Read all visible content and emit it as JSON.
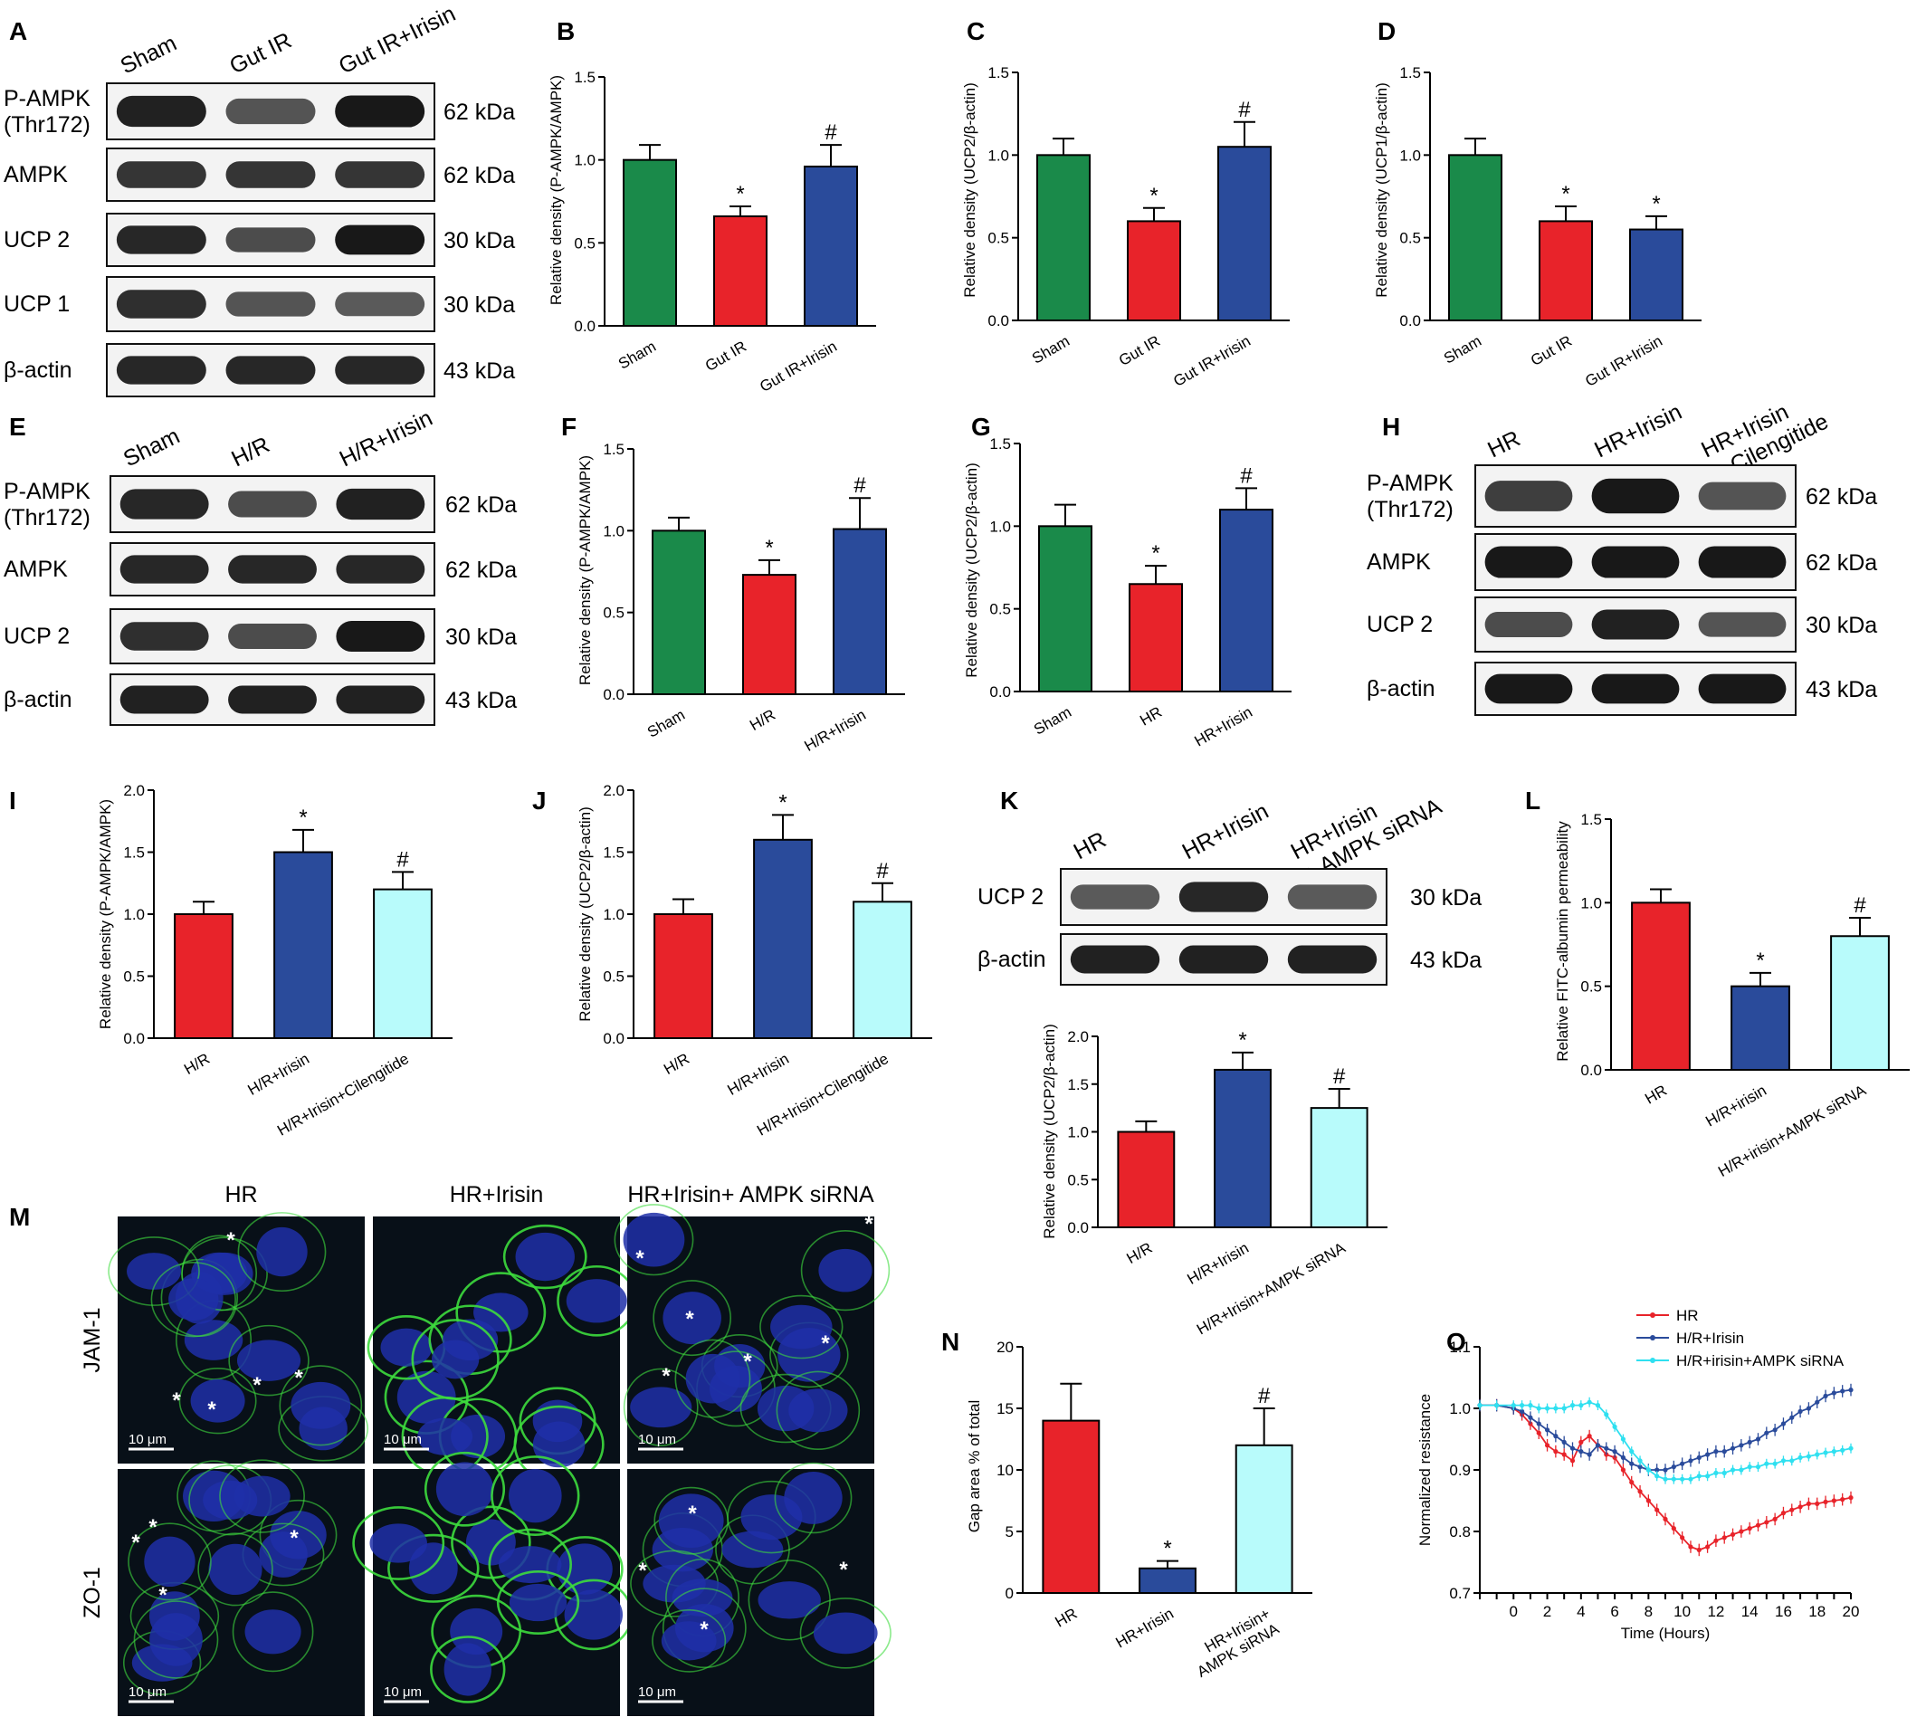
{
  "figure": {
    "panel_letters": [
      "A",
      "B",
      "C",
      "D",
      "E",
      "F",
      "G",
      "H",
      "I",
      "J",
      "K",
      "L",
      "M",
      "N",
      "O"
    ]
  },
  "colors": {
    "green": "#1a8a4a",
    "red": "#e8232a",
    "blue": "#2a4b9b",
    "cyan": "#b8fbfb",
    "blot_bg": "#f3f3f3",
    "band": "#111111",
    "micro_bg": "#081018",
    "micro_nuclei": "#1f2fa8",
    "micro_membrane": "#3ddc3d"
  },
  "blots": {
    "A": {
      "lanes": [
        "Sham",
        "Gut IR",
        "Gut IR+Irisin"
      ],
      "rows": [
        {
          "label": "P-AMPK\n(Thr172)",
          "kda": "62 kDa",
          "intensity": [
            0.9,
            0.55,
            0.95
          ]
        },
        {
          "label": "AMPK",
          "kda": "62 kDa",
          "intensity": [
            0.75,
            0.75,
            0.75
          ]
        },
        {
          "label": "UCP 2",
          "kda": "30 kDa",
          "intensity": [
            0.85,
            0.6,
            0.95
          ]
        },
        {
          "label": "UCP 1",
          "kda": "30 kDa",
          "intensity": [
            0.8,
            0.55,
            0.5
          ]
        },
        {
          "label": "β-actin",
          "kda": "43 kDa",
          "intensity": [
            0.85,
            0.85,
            0.85
          ]
        }
      ]
    },
    "E": {
      "lanes": [
        "Sham",
        "H/R",
        "H/R+Irisin"
      ],
      "rows": [
        {
          "label": "P-AMPK\n(Thr172)",
          "kda": "62 kDa",
          "intensity": [
            0.85,
            0.6,
            0.9
          ]
        },
        {
          "label": "AMPK",
          "kda": "62 kDa",
          "intensity": [
            0.85,
            0.85,
            0.85
          ]
        },
        {
          "label": "UCP 2",
          "kda": "30 kDa",
          "intensity": [
            0.8,
            0.6,
            0.95
          ]
        },
        {
          "label": "β-actin",
          "kda": "43 kDa",
          "intensity": [
            0.9,
            0.9,
            0.9
          ]
        }
      ]
    },
    "H": {
      "lanes": [
        "HR",
        "HR+Irisin",
        "HR+Irisin\n+ Cilengitide"
      ],
      "rows": [
        {
          "label": "P-AMPK\n(Thr172)",
          "kda": "62 kDa",
          "intensity": [
            0.7,
            0.95,
            0.55
          ]
        },
        {
          "label": "AMPK",
          "kda": "62 kDa",
          "intensity": [
            0.95,
            0.95,
            0.95
          ]
        },
        {
          "label": "UCP 2",
          "kda": "30 kDa",
          "intensity": [
            0.6,
            0.9,
            0.55
          ]
        },
        {
          "label": "β-actin",
          "kda": "43 kDa",
          "intensity": [
            0.95,
            0.95,
            0.95
          ]
        }
      ]
    },
    "K": {
      "lanes": [
        "HR",
        "HR+Irisin",
        "HR+Irisin\n+ AMPK siRNA"
      ],
      "rows": [
        {
          "label": "UCP 2",
          "kda": "30 kDa",
          "intensity": [
            0.5,
            0.85,
            0.5
          ]
        },
        {
          "label": "β-actin",
          "kda": "43 kDa",
          "intensity": [
            0.9,
            0.9,
            0.9
          ]
        }
      ]
    }
  },
  "microscopy": {
    "columns": [
      "HR",
      "HR+Irisin",
      "HR+Irisin+ AMPK siRNA"
    ],
    "rows": [
      "JAM-1",
      "ZO-1"
    ],
    "scale_bar": "10 μm",
    "asterisk": "*"
  },
  "chart_data": [
    {
      "panel": "B",
      "type": "bar",
      "categories": [
        "Sham",
        "Gut IR",
        "Gut IR+Irisin"
      ],
      "values": [
        1.0,
        0.66,
        0.96
      ],
      "errors": [
        0.09,
        0.06,
        0.13
      ],
      "colors": [
        "green",
        "red",
        "blue"
      ],
      "significance": [
        "",
        "*",
        "#"
      ],
      "ylabel": "Relative density (P-AMPK/AMPK)",
      "ylim": [
        0,
        1.5
      ],
      "ticks": [
        "0.0",
        "0.5",
        "1.0",
        "1.5"
      ]
    },
    {
      "panel": "C",
      "type": "bar",
      "categories": [
        "Sham",
        "Gut IR",
        "Gut IR+Irisin"
      ],
      "values": [
        1.0,
        0.6,
        1.05
      ],
      "errors": [
        0.1,
        0.08,
        0.15
      ],
      "colors": [
        "green",
        "red",
        "blue"
      ],
      "significance": [
        "",
        "*",
        "#"
      ],
      "ylabel": "Relative density (UCP2/β-actin)",
      "ylim": [
        0,
        1.5
      ],
      "ticks": [
        "0.0",
        "0.5",
        "1.0",
        "1.5"
      ]
    },
    {
      "panel": "D",
      "type": "bar",
      "categories": [
        "Sham",
        "Gut IR",
        "Gut IR+Irisin"
      ],
      "values": [
        1.0,
        0.6,
        0.55
      ],
      "errors": [
        0.1,
        0.09,
        0.08
      ],
      "colors": [
        "green",
        "red",
        "blue"
      ],
      "significance": [
        "",
        "*",
        "*"
      ],
      "ylabel": "Relative density (UCP1/β-actin)",
      "ylim": [
        0,
        1.5
      ],
      "ticks": [
        "0.0",
        "0.5",
        "1.0",
        "1.5"
      ]
    },
    {
      "panel": "F",
      "type": "bar",
      "categories": [
        "Sham",
        "H/R",
        "H/R+Irisin"
      ],
      "values": [
        1.0,
        0.73,
        1.01
      ],
      "errors": [
        0.08,
        0.09,
        0.19
      ],
      "colors": [
        "green",
        "red",
        "blue"
      ],
      "significance": [
        "",
        "*",
        "#"
      ],
      "ylabel": "Relative density (P-AMPK/AMPK)",
      "ylim": [
        0,
        1.5
      ],
      "ticks": [
        "0.0",
        "0.5",
        "1.0",
        "1.5"
      ]
    },
    {
      "panel": "G",
      "type": "bar",
      "categories": [
        "Sham",
        "HR",
        "HR+Irisin"
      ],
      "values": [
        1.0,
        0.65,
        1.1
      ],
      "errors": [
        0.13,
        0.11,
        0.13
      ],
      "colors": [
        "green",
        "red",
        "blue"
      ],
      "significance": [
        "",
        "*",
        "#"
      ],
      "ylabel": "Relative density (UCP2/β-actin)",
      "ylim": [
        0,
        1.5
      ],
      "ticks": [
        "0.0",
        "0.5",
        "1.0",
        "1.5"
      ]
    },
    {
      "panel": "I",
      "type": "bar",
      "categories": [
        "H/R",
        "H/R+Irisin",
        "H/R+Irisin+Cilengitide"
      ],
      "values": [
        1.0,
        1.5,
        1.2
      ],
      "errors": [
        0.1,
        0.18,
        0.14
      ],
      "colors": [
        "red",
        "blue",
        "cyan"
      ],
      "significance": [
        "",
        "*",
        "#"
      ],
      "ylabel": "Relative density (P-AMPK/AMPK)",
      "ylim": [
        0,
        2.0
      ],
      "ticks": [
        "0.0",
        "0.5",
        "1.0",
        "1.5",
        "2.0"
      ]
    },
    {
      "panel": "J",
      "type": "bar",
      "categories": [
        "H/R",
        "H/R+Irisin",
        "H/R+Irisin+Cilengitide"
      ],
      "values": [
        1.0,
        1.6,
        1.1
      ],
      "errors": [
        0.12,
        0.2,
        0.15
      ],
      "colors": [
        "red",
        "blue",
        "cyan"
      ],
      "significance": [
        "",
        "*",
        "#"
      ],
      "ylabel": "Relative density (UCP2/β-actin)",
      "ylim": [
        0,
        2.0
      ],
      "ticks": [
        "0.0",
        "0.5",
        "1.0",
        "1.5",
        "2.0"
      ]
    },
    {
      "panel": "K",
      "type": "bar",
      "categories": [
        "H/R",
        "H/R+Irisin",
        "H/R+Irisin+AMPK siRNA"
      ],
      "values": [
        1.0,
        1.65,
        1.25
      ],
      "errors": [
        0.11,
        0.18,
        0.2
      ],
      "colors": [
        "red",
        "blue",
        "cyan"
      ],
      "significance": [
        "",
        "*",
        "#"
      ],
      "ylabel": "Relative density (UCP2/β-actin)",
      "ylim": [
        0,
        2.0
      ],
      "ticks": [
        "0.0",
        "0.5",
        "1.0",
        "1.5",
        "2.0"
      ]
    },
    {
      "panel": "L",
      "type": "bar",
      "categories": [
        "HR",
        "H/R+irisin",
        "H/R+irisin+AMPK siRNA"
      ],
      "values": [
        1.0,
        0.5,
        0.8
      ],
      "errors": [
        0.08,
        0.08,
        0.11
      ],
      "colors": [
        "red",
        "blue",
        "cyan"
      ],
      "significance": [
        "",
        "*",
        "#"
      ],
      "ylabel": "Relative FITC-albumin permeability",
      "ylim": [
        0,
        1.5
      ],
      "ticks": [
        "0.0",
        "0.5",
        "1.0",
        "1.5"
      ]
    },
    {
      "panel": "N",
      "type": "bar",
      "categories": [
        "HR",
        "HR+Irisin",
        "HR+Irisin+\nAMPK siRNA"
      ],
      "values": [
        14,
        2,
        12
      ],
      "errors": [
        3,
        0.6,
        3
      ],
      "colors": [
        "red",
        "blue",
        "cyan"
      ],
      "significance": [
        "",
        "*",
        "#"
      ],
      "ylabel": "Gap area % of total",
      "ylim": [
        0,
        20
      ],
      "ticks": [
        "0",
        "5",
        "10",
        "15",
        "20"
      ]
    },
    {
      "panel": "O",
      "type": "line",
      "xlabel": "Time (Hours)",
      "ylabel": "Normalized resistance",
      "xlim": [
        -2,
        20
      ],
      "ylim": [
        0.7,
        1.1
      ],
      "xticks": [
        "0",
        "2",
        "4",
        "6",
        "8",
        "10",
        "12",
        "14",
        "16",
        "18",
        "20"
      ],
      "yticks": [
        "0.7",
        "0.8",
        "0.9",
        "1.0",
        "1.1"
      ],
      "legend": "top-right",
      "series": [
        {
          "name": "HR",
          "color": "red",
          "x": [
            -2,
            -1,
            0,
            0.5,
            1,
            1.5,
            2,
            2.5,
            3,
            3.5,
            4,
            4.5,
            5,
            5.5,
            6,
            6.5,
            7,
            7.5,
            8,
            8.5,
            9,
            9.5,
            10,
            10.5,
            11,
            11.5,
            12,
            12.5,
            13,
            13.5,
            14,
            14.5,
            15,
            15.5,
            16,
            16.5,
            17,
            17.5,
            18,
            18.5,
            19,
            19.5,
            20
          ],
          "y": [
            1.005,
            1.005,
            1.0,
            0.99,
            0.975,
            0.96,
            0.94,
            0.93,
            0.925,
            0.915,
            0.945,
            0.955,
            0.94,
            0.925,
            0.92,
            0.9,
            0.88,
            0.865,
            0.85,
            0.835,
            0.82,
            0.805,
            0.79,
            0.775,
            0.77,
            0.775,
            0.785,
            0.79,
            0.795,
            0.8,
            0.805,
            0.81,
            0.815,
            0.82,
            0.83,
            0.835,
            0.84,
            0.845,
            0.845,
            0.848,
            0.85,
            0.852,
            0.855
          ],
          "error": 0.01
        },
        {
          "name": "H/R+Irisin",
          "color": "blue",
          "x": [
            -2,
            -1,
            0,
            0.5,
            1,
            1.5,
            2,
            2.5,
            3,
            3.5,
            4,
            4.5,
            5,
            5.5,
            6,
            6.5,
            7,
            7.5,
            8,
            8.5,
            9,
            9.5,
            10,
            10.5,
            11,
            11.5,
            12,
            12.5,
            13,
            13.5,
            14,
            14.5,
            15,
            15.5,
            16,
            16.5,
            17,
            17.5,
            18,
            18.5,
            19,
            19.5,
            20
          ],
          "y": [
            1.005,
            1.005,
            1.0,
            0.995,
            0.985,
            0.975,
            0.965,
            0.955,
            0.945,
            0.935,
            0.93,
            0.925,
            0.94,
            0.935,
            0.93,
            0.92,
            0.91,
            0.905,
            0.9,
            0.9,
            0.9,
            0.905,
            0.91,
            0.915,
            0.92,
            0.925,
            0.93,
            0.93,
            0.935,
            0.94,
            0.945,
            0.95,
            0.96,
            0.965,
            0.975,
            0.985,
            0.995,
            1.0,
            1.01,
            1.02,
            1.025,
            1.028,
            1.03
          ],
          "error": 0.01
        },
        {
          "name": "H/R+irisin+AMPK siRNA",
          "color": "cyan",
          "x": [
            -2,
            -1,
            0,
            0.5,
            1,
            1.5,
            2,
            2.5,
            3,
            3.5,
            4,
            4.5,
            5,
            5.5,
            6,
            6.5,
            7,
            7.5,
            8,
            8.5,
            9,
            9.5,
            10,
            10.5,
            11,
            11.5,
            12,
            12.5,
            13,
            13.5,
            14,
            14.5,
            15,
            15.5,
            16,
            16.5,
            17,
            17.5,
            18,
            18.5,
            19,
            19.5,
            20
          ],
          "y": [
            1.005,
            1.005,
            1.005,
            1.005,
            1.005,
            1.0,
            1.0,
            1.0,
            1.0,
            1.005,
            1.005,
            1.01,
            1.005,
            0.99,
            0.97,
            0.95,
            0.93,
            0.915,
            0.9,
            0.89,
            0.885,
            0.885,
            0.885,
            0.885,
            0.89,
            0.89,
            0.895,
            0.895,
            0.9,
            0.9,
            0.905,
            0.905,
            0.91,
            0.91,
            0.915,
            0.915,
            0.92,
            0.922,
            0.925,
            0.928,
            0.93,
            0.932,
            0.935
          ],
          "error": 0.008
        }
      ]
    }
  ]
}
